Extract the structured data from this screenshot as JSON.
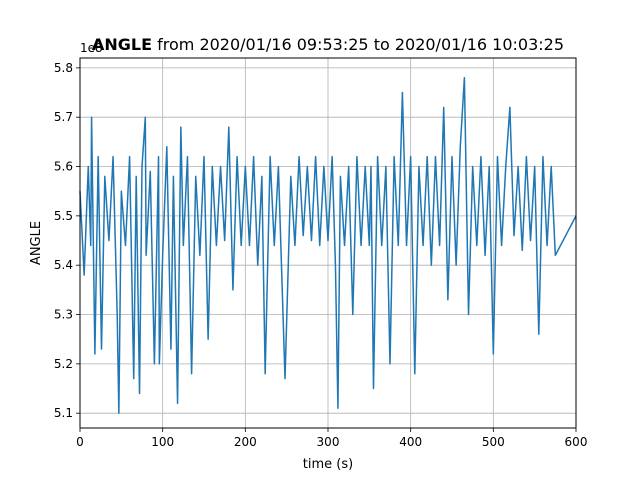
{
  "chart_data": {
    "type": "line",
    "title_bold": "ANGLE",
    "title_rest": " from 2020/01/16 09:53:25 to 2020/01/16 10:03:25",
    "xlabel": "time (s)",
    "ylabel": "ANGLE",
    "offset_label": "1e8",
    "xlim": [
      0,
      600
    ],
    "ylim": [
      5.07,
      5.82
    ],
    "y_scale": "1e8",
    "x_ticks": [
      0,
      100,
      200,
      300,
      400,
      500,
      600
    ],
    "y_ticks": [
      5.1,
      5.2,
      5.3,
      5.4,
      5.5,
      5.6,
      5.7,
      5.8
    ],
    "grid": true,
    "legend": "none",
    "series": [
      {
        "color": "#1f77b4",
        "x": [
          0,
          5,
          10,
          13,
          14,
          18,
          22,
          26,
          30,
          35,
          40,
          45,
          47,
          50,
          55,
          60,
          65,
          68,
          72,
          75,
          79,
          80,
          85,
          90,
          95,
          96,
          100,
          105,
          110,
          113,
          118,
          122,
          125,
          130,
          135,
          140,
          145,
          150,
          155,
          160,
          165,
          170,
          175,
          180,
          185,
          190,
          195,
          200,
          205,
          210,
          215,
          220,
          224,
          230,
          235,
          240,
          248,
          255,
          260,
          265,
          270,
          275,
          280,
          285,
          290,
          295,
          300,
          305,
          309,
          312,
          315,
          320,
          325,
          330,
          335,
          340,
          345,
          350,
          352,
          355,
          360,
          365,
          370,
          375,
          380,
          385,
          390,
          395,
          400,
          405,
          410,
          415,
          420,
          425,
          430,
          435,
          440,
          445,
          450,
          455,
          460,
          465,
          470,
          475,
          480,
          485,
          490,
          495,
          500,
          505,
          510,
          515,
          520,
          525,
          530,
          535,
          540,
          545,
          550,
          555,
          560,
          565,
          570,
          575,
          600
        ],
        "y": [
          5.55,
          5.38,
          5.6,
          5.44,
          5.7,
          5.22,
          5.62,
          5.23,
          5.58,
          5.45,
          5.62,
          5.3,
          5.1,
          5.55,
          5.44,
          5.62,
          5.17,
          5.58,
          5.14,
          5.6,
          5.7,
          5.42,
          5.59,
          5.2,
          5.62,
          5.2,
          5.42,
          5.64,
          5.23,
          5.58,
          5.12,
          5.68,
          5.44,
          5.62,
          5.18,
          5.58,
          5.42,
          5.62,
          5.25,
          5.6,
          5.44,
          5.6,
          5.45,
          5.68,
          5.35,
          5.62,
          5.44,
          5.6,
          5.44,
          5.62,
          5.4,
          5.58,
          5.18,
          5.62,
          5.44,
          5.6,
          5.17,
          5.58,
          5.44,
          5.62,
          5.46,
          5.6,
          5.45,
          5.62,
          5.44,
          5.6,
          5.45,
          5.62,
          5.4,
          5.11,
          5.58,
          5.44,
          5.6,
          5.3,
          5.62,
          5.44,
          5.6,
          5.44,
          5.6,
          5.15,
          5.62,
          5.44,
          5.6,
          5.2,
          5.62,
          5.44,
          5.75,
          5.44,
          5.62,
          5.18,
          5.6,
          5.44,
          5.62,
          5.4,
          5.62,
          5.44,
          5.72,
          5.33,
          5.62,
          5.4,
          5.64,
          5.78,
          5.3,
          5.6,
          5.44,
          5.62,
          5.42,
          5.6,
          5.22,
          5.62,
          5.44,
          5.6,
          5.72,
          5.46,
          5.6,
          5.43,
          5.62,
          5.45,
          5.6,
          5.26,
          5.62,
          5.44,
          5.6,
          5.42,
          5.5
        ]
      }
    ]
  }
}
